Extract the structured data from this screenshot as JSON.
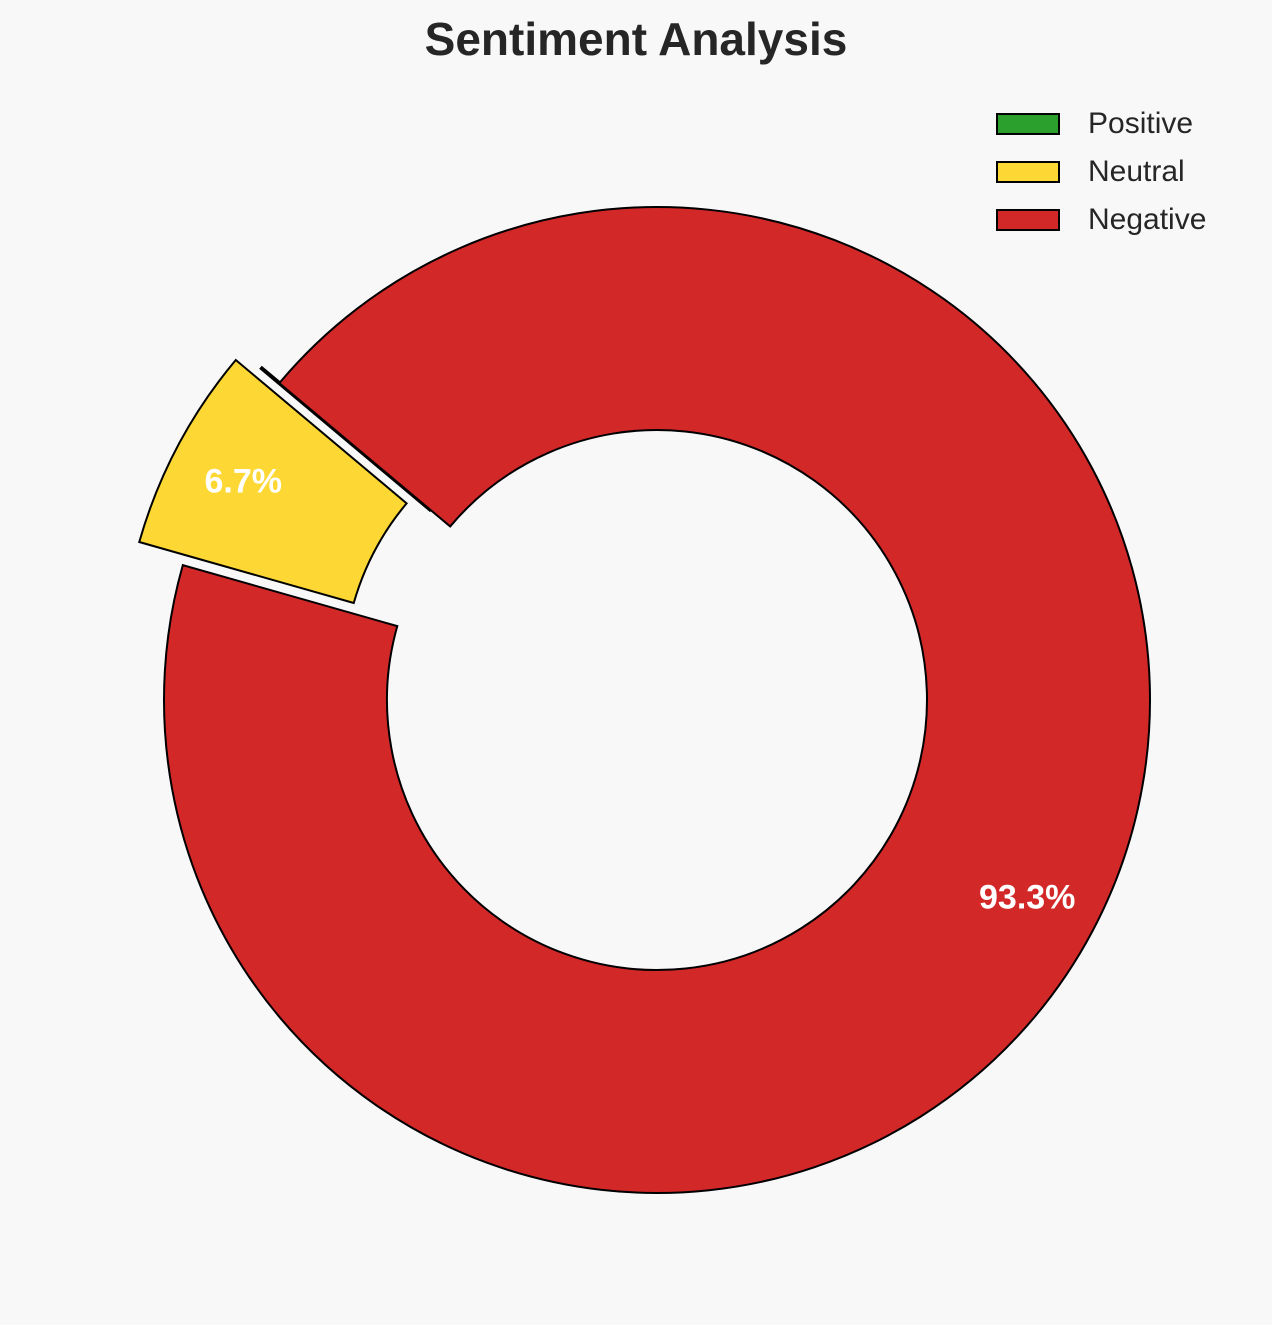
{
  "chart_data": {
    "type": "pie",
    "variant": "donut",
    "title": "Sentiment Analysis",
    "categories": [
      "Positive",
      "Neutral",
      "Negative"
    ],
    "values": [
      0.0,
      6.7,
      93.3
    ],
    "labels": [
      "",
      "6.7%",
      "93.3%"
    ],
    "colors": [
      "#2ca02c",
      "#fdd835",
      "#d32828"
    ],
    "exploded": [
      "Positive",
      "Neutral"
    ],
    "legend_position": "top-right"
  }
}
